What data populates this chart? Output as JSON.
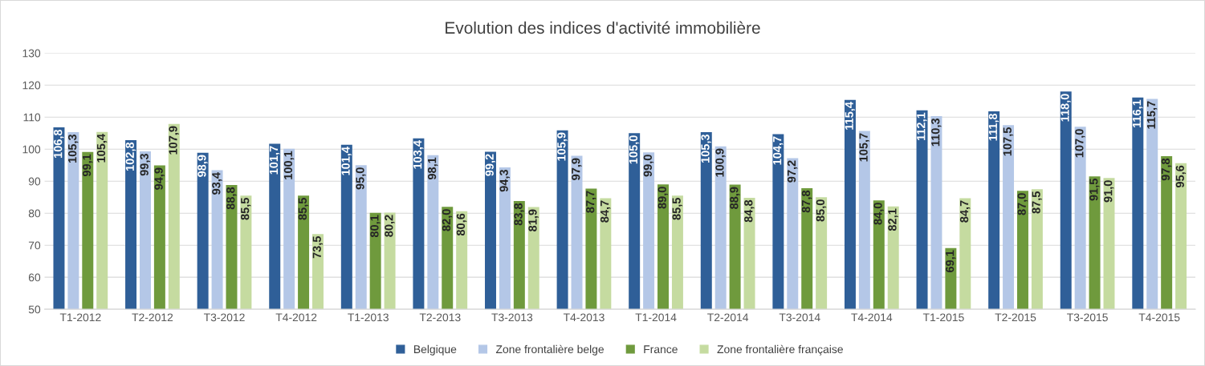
{
  "chart_data": {
    "type": "bar",
    "title": "Evolution des indices d'activité immobilière",
    "categories": [
      "T1-2012",
      "T2-2012",
      "T3-2012",
      "T4-2012",
      "T1-2013",
      "T2-2013",
      "T3-2013",
      "T4-2013",
      "T1-2014",
      "T2-2014",
      "T3-2014",
      "T4-2014",
      "T1-2015",
      "T2-2015",
      "T3-2015",
      "T4-2015"
    ],
    "series": [
      {
        "name": "Belgique",
        "color": "#2f5f98",
        "values": [
          106.8,
          102.8,
          98.9,
          101.7,
          101.4,
          103.4,
          99.2,
          105.9,
          105.0,
          105.3,
          104.7,
          115.4,
          112.1,
          111.8,
          118.0,
          116.1
        ],
        "value_labels": [
          "106,8",
          "102,8",
          "98,9",
          "101,7",
          "101,4",
          "103,4",
          "99,2",
          "105,9",
          "105,0",
          "105,3",
          "104,7",
          "115,4",
          "112,1",
          "111,8",
          "118,0",
          "116,1"
        ]
      },
      {
        "name": "Zone frontalière belge",
        "color": "#b4c7e7",
        "values": [
          105.3,
          99.3,
          93.4,
          100.1,
          95.0,
          98.1,
          94.3,
          97.9,
          99.0,
          100.9,
          97.2,
          105.7,
          110.3,
          107.5,
          107.0,
          115.7
        ],
        "value_labels": [
          "105,3",
          "99,3",
          "93,4",
          "100,1",
          "95,0",
          "98,1",
          "94,3",
          "97,9",
          "99,0",
          "100,9",
          "97,2",
          "105,7",
          "110,3",
          "107,5",
          "107,0",
          "115,7"
        ]
      },
      {
        "name": "France",
        "color": "#6f9a3d",
        "values": [
          99.1,
          94.9,
          88.8,
          85.5,
          80.1,
          82.0,
          83.8,
          87.7,
          89.0,
          88.9,
          87.8,
          84.0,
          69.1,
          87.0,
          91.5,
          97.8
        ],
        "value_labels": [
          "99,1",
          "94,9",
          "88,8",
          "85,5",
          "80,1",
          "82,0",
          "83,8",
          "87,7",
          "89,0",
          "88,9",
          "87,8",
          "84,0",
          "69,1",
          "87,0",
          "91,5",
          "97,8"
        ]
      },
      {
        "name": "Zone frontalière française",
        "color": "#c5dba0",
        "values": [
          105.4,
          107.9,
          85.5,
          73.5,
          80.2,
          80.6,
          81.9,
          84.7,
          85.5,
          84.8,
          85.0,
          82.1,
          84.7,
          87.5,
          91.0,
          95.6
        ],
        "value_labels": [
          "105,4",
          "107,9",
          "85,5",
          "73,5",
          "80,2",
          "80,6",
          "81,9",
          "84,7",
          "85,5",
          "84,8",
          "85,0",
          "82,1",
          "84,7",
          "87,5",
          "91,0",
          "95,6"
        ]
      }
    ],
    "ylim": [
      50,
      130
    ],
    "yticks": [
      50,
      60,
      70,
      80,
      90,
      100,
      110,
      120,
      130
    ],
    "grid": "y",
    "legend": "bottom"
  }
}
